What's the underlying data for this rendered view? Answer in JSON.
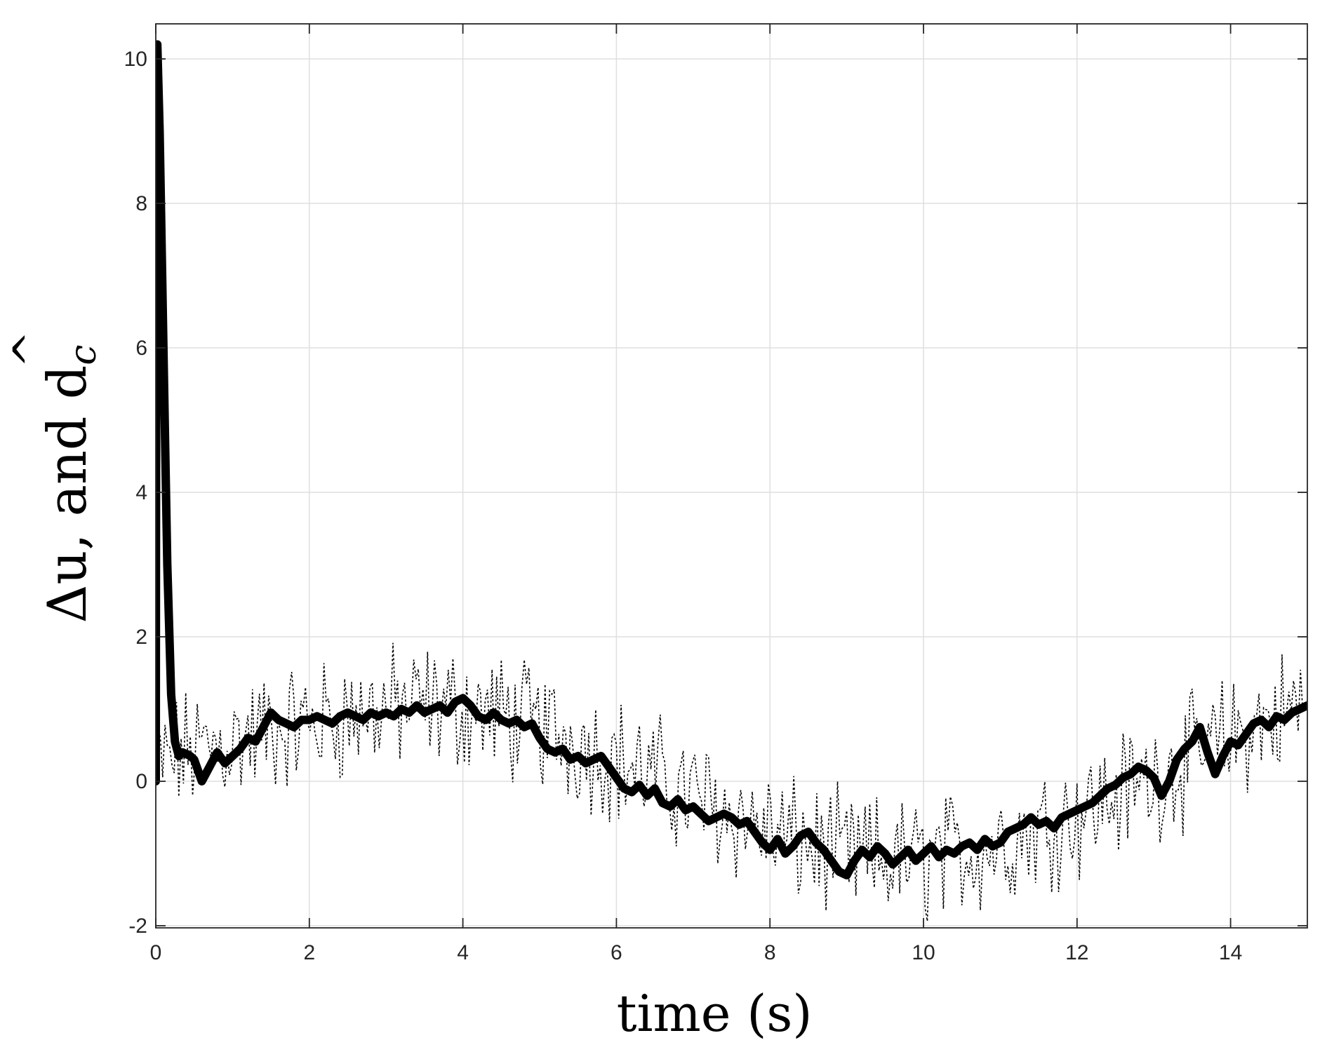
{
  "chart_data": {
    "type": "line",
    "title": "",
    "xlabel": "time (s)",
    "ylabel_main": "Δu, and d",
    "ylabel_hat": "^",
    "ylabel_subscript": "c",
    "xlim": [
      0,
      15
    ],
    "ylim": [
      -2,
      10.5
    ],
    "x_ticks": [
      0,
      2,
      4,
      6,
      8,
      10,
      12,
      14
    ],
    "x_tick_labels": [
      "0",
      "2",
      "4",
      "6",
      "8",
      "10",
      "12",
      "14"
    ],
    "y_ticks": [
      -2,
      0,
      2,
      4,
      6,
      8,
      10
    ],
    "y_tick_labels": [
      "-2",
      "0",
      "2",
      "4",
      "6",
      "8",
      "10"
    ],
    "grid": true,
    "series": [
      {
        "style": "dotted",
        "color": "#000000",
        "sample_dt": 0.03,
        "noise_amplitude": 0.7,
        "x": [
          0,
          0.3,
          0.6,
          1,
          1.5,
          2,
          2.5,
          3,
          3.5,
          4,
          4.5,
          5,
          5.5,
          6,
          6.5,
          7,
          7.5,
          8,
          8.5,
          9,
          9.5,
          10,
          10.5,
          11,
          11.5,
          12,
          12.5,
          13,
          13.5,
          14,
          14.5,
          15
        ],
        "y": [
          0.2,
          0.35,
          0.45,
          0.55,
          0.7,
          0.8,
          0.9,
          1.0,
          1.05,
          1.0,
          0.9,
          0.75,
          0.55,
          0.3,
          0.05,
          -0.2,
          -0.45,
          -0.7,
          -0.9,
          -1.05,
          -1.1,
          -1.1,
          -1.0,
          -0.85,
          -0.65,
          -0.45,
          -0.2,
          0.05,
          0.3,
          0.6,
          0.85,
          1.1
        ]
      },
      {
        "style": "solid-thick",
        "color": "#000000",
        "x": [
          0,
          0.003,
          0.01,
          0.02,
          0.05,
          0.1,
          0.15,
          0.2,
          0.25,
          0.3,
          0.35,
          0.45,
          0.5,
          0.6,
          0.7,
          0.8,
          0.9,
          1.0,
          1.1,
          1.2,
          1.3,
          1.4,
          1.5,
          1.6,
          1.7,
          1.8,
          1.9,
          2.0,
          2.1,
          2.2,
          2.3,
          2.4,
          2.5,
          2.6,
          2.7,
          2.8,
          2.9,
          3.0,
          3.1,
          3.2,
          3.3,
          3.4,
          3.5,
          3.6,
          3.7,
          3.8,
          3.9,
          4.0,
          4.1,
          4.2,
          4.3,
          4.4,
          4.5,
          4.6,
          4.7,
          4.8,
          4.9,
          5.0,
          5.1,
          5.2,
          5.3,
          5.4,
          5.5,
          5.6,
          5.7,
          5.8,
          5.9,
          6.0,
          6.1,
          6.2,
          6.3,
          6.4,
          6.5,
          6.6,
          6.7,
          6.8,
          6.9,
          7.0,
          7.1,
          7.2,
          7.3,
          7.4,
          7.5,
          7.6,
          7.7,
          7.8,
          7.9,
          8.0,
          8.1,
          8.2,
          8.3,
          8.4,
          8.5,
          8.6,
          8.7,
          8.8,
          8.9,
          9.0,
          9.1,
          9.2,
          9.3,
          9.4,
          9.5,
          9.6,
          9.7,
          9.8,
          9.9,
          10.0,
          10.1,
          10.2,
          10.3,
          10.4,
          10.5,
          10.6,
          10.7,
          10.8,
          10.9,
          11.0,
          11.1,
          11.2,
          11.3,
          11.4,
          11.5,
          11.6,
          11.7,
          11.8,
          11.9,
          12.0,
          12.1,
          12.2,
          12.3,
          12.4,
          12.5,
          12.6,
          12.7,
          12.8,
          12.9,
          13.0,
          13.1,
          13.2,
          13.3,
          13.4,
          13.5,
          13.6,
          13.7,
          13.8,
          13.9,
          14.0,
          14.1,
          14.2,
          14.3,
          14.4,
          14.5,
          14.6,
          14.7,
          14.8,
          14.9,
          15.0
        ],
        "y": [
          0.0,
          3.5,
          8.0,
          10.2,
          9.0,
          6.0,
          3.0,
          1.2,
          0.55,
          0.35,
          0.4,
          0.35,
          0.3,
          0.0,
          0.2,
          0.4,
          0.25,
          0.35,
          0.45,
          0.6,
          0.55,
          0.75,
          0.95,
          0.85,
          0.8,
          0.75,
          0.85,
          0.85,
          0.9,
          0.85,
          0.8,
          0.9,
          0.95,
          0.9,
          0.85,
          0.95,
          0.9,
          0.95,
          0.9,
          1.0,
          0.95,
          1.05,
          0.95,
          1.0,
          1.05,
          0.95,
          1.1,
          1.15,
          1.05,
          0.9,
          0.85,
          0.95,
          0.85,
          0.8,
          0.85,
          0.75,
          0.8,
          0.6,
          0.45,
          0.4,
          0.45,
          0.3,
          0.35,
          0.25,
          0.3,
          0.35,
          0.2,
          0.05,
          -0.1,
          -0.15,
          -0.05,
          -0.2,
          -0.1,
          -0.3,
          -0.35,
          -0.25,
          -0.4,
          -0.35,
          -0.45,
          -0.55,
          -0.5,
          -0.45,
          -0.5,
          -0.6,
          -0.55,
          -0.7,
          -0.85,
          -0.95,
          -0.8,
          -1.0,
          -0.9,
          -0.75,
          -0.7,
          -0.85,
          -0.95,
          -1.1,
          -1.25,
          -1.3,
          -1.1,
          -0.95,
          -1.05,
          -0.9,
          -1.0,
          -1.15,
          -1.05,
          -0.95,
          -1.1,
          -1.0,
          -0.9,
          -1.05,
          -0.95,
          -1.0,
          -0.9,
          -0.85,
          -0.95,
          -0.8,
          -0.9,
          -0.85,
          -0.7,
          -0.65,
          -0.6,
          -0.5,
          -0.6,
          -0.55,
          -0.65,
          -0.5,
          -0.45,
          -0.4,
          -0.35,
          -0.3,
          -0.2,
          -0.1,
          -0.05,
          0.05,
          0.1,
          0.2,
          0.15,
          0.05,
          -0.2,
          0.0,
          0.3,
          0.45,
          0.55,
          0.75,
          0.4,
          0.1,
          0.35,
          0.55,
          0.5,
          0.65,
          0.8,
          0.85,
          0.75,
          0.9,
          0.85,
          0.95,
          1.0,
          1.05
        ]
      }
    ]
  }
}
